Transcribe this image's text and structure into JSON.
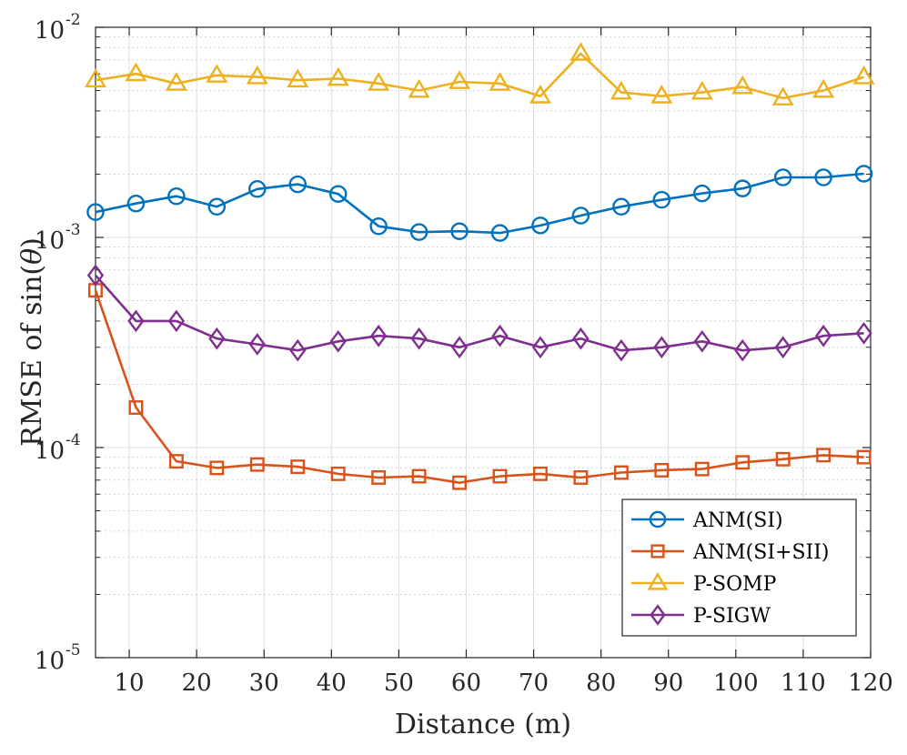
{
  "chart_data": {
    "type": "line",
    "title": "",
    "xlabel": "Distance (m)",
    "ylabel": "RMSE of sin(θ)",
    "ylabel_prefix": "RMSE of sin(",
    "ylabel_theta": "θ",
    "ylabel_suffix": ")",
    "xlim": [
      5,
      120
    ],
    "ylim": [
      1e-05,
      0.01
    ],
    "yscale": "log",
    "grid": true,
    "legend_position": "bottom-right",
    "x": [
      5,
      11,
      17,
      23,
      29,
      35,
      41,
      47,
      53,
      59,
      65,
      71,
      77,
      83,
      89,
      95,
      101,
      107,
      113,
      119
    ],
    "xticks": [
      {
        "value": 10,
        "label": "10"
      },
      {
        "value": 20,
        "label": "20"
      },
      {
        "value": 30,
        "label": "30"
      },
      {
        "value": 40,
        "label": "40"
      },
      {
        "value": 50,
        "label": "50"
      },
      {
        "value": 60,
        "label": "60"
      },
      {
        "value": 70,
        "label": "70"
      },
      {
        "value": 80,
        "label": "80"
      },
      {
        "value": 90,
        "label": "90"
      },
      {
        "value": 100,
        "label": "100"
      },
      {
        "value": 110,
        "label": "110"
      },
      {
        "value": 120,
        "label": "120"
      }
    ],
    "yticks": [
      {
        "value": 0.01,
        "base": "10",
        "exp": "-2"
      },
      {
        "value": 0.001,
        "base": "10",
        "exp": "-3"
      },
      {
        "value": 0.0001,
        "base": "10",
        "exp": "-4"
      },
      {
        "value": 1e-05,
        "base": "10",
        "exp": "-5"
      }
    ],
    "series": [
      {
        "name": "ANM(SI)",
        "color": "#0072bd",
        "marker": "circle",
        "values": [
          0.00132,
          0.00145,
          0.00157,
          0.0014,
          0.0017,
          0.00179,
          0.00161,
          0.00113,
          0.00106,
          0.00107,
          0.00105,
          0.00114,
          0.00127,
          0.0014,
          0.00151,
          0.00162,
          0.00171,
          0.00193,
          0.00193,
          0.00201
        ]
      },
      {
        "name": "ANM(SI+SII)",
        "color": "#d95319",
        "marker": "square",
        "values": [
          0.00056,
          0.000155,
          8.6e-05,
          8e-05,
          8.3e-05,
          8.1e-05,
          7.5e-05,
          7.2e-05,
          7.3e-05,
          6.8e-05,
          7.3e-05,
          7.5e-05,
          7.2e-05,
          7.6e-05,
          7.8e-05,
          7.9e-05,
          8.5e-05,
          8.8e-05,
          9.2e-05,
          9e-05
        ]
      },
      {
        "name": "P-SOMP",
        "color": "#edb120",
        "marker": "triangle",
        "values": [
          0.0056,
          0.006,
          0.0054,
          0.0059,
          0.0058,
          0.0056,
          0.0057,
          0.0054,
          0.005,
          0.0055,
          0.0054,
          0.0047,
          0.0075,
          0.0049,
          0.0047,
          0.0049,
          0.0052,
          0.0046,
          0.005,
          0.0058
        ]
      },
      {
        "name": "P-SIGW",
        "color": "#7e2f8e",
        "marker": "diamond",
        "values": [
          0.00066,
          0.0004,
          0.0004,
          0.00033,
          0.00031,
          0.00029,
          0.00032,
          0.00034,
          0.00033,
          0.0003,
          0.00034,
          0.0003,
          0.00033,
          0.00029,
          0.0003,
          0.00032,
          0.00029,
          0.0003,
          0.00034,
          0.00035
        ]
      }
    ]
  }
}
